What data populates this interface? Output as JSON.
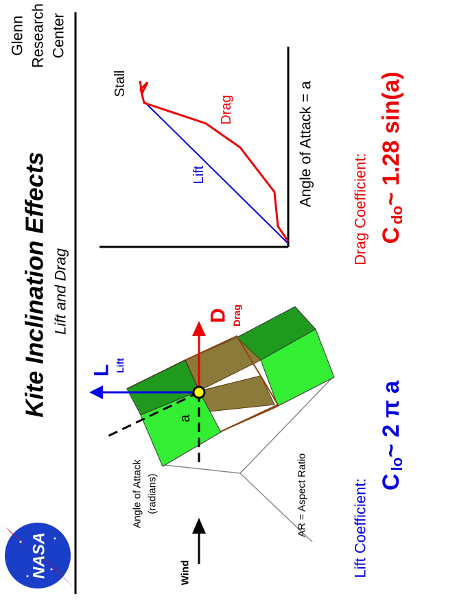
{
  "header": {
    "title": "Kite  Inclination  Effects",
    "subtitle": "Lift  and  Drag",
    "center": [
      "Glenn",
      "Research",
      "Center"
    ],
    "logo": "NASA"
  },
  "diagram": {
    "lift_symbol": "L",
    "lift_label": "Lift",
    "drag_symbol": "D",
    "drag_label": "Drag",
    "angle_symbol": "a",
    "angle_label": [
      "Angle  of  Attack",
      "(radians)"
    ],
    "aspect_label": "AR = Aspect Ratio",
    "wind_label": "Wind"
  },
  "graph": {
    "x_label": "Angle  of  Attack = a",
    "lift_curve": "Lift",
    "drag_curve": "Drag",
    "stall_label": "Stall"
  },
  "formulas": {
    "lift": {
      "label": "Lift  Coefficient:",
      "symbol": "C",
      "subscript": "lo",
      "expression": "~ 2 π a"
    },
    "drag": {
      "label": "Drag  Coefficient:",
      "symbol": "C",
      "subscript": "do",
      "expression": "~  1.28  sin(a)"
    }
  }
}
